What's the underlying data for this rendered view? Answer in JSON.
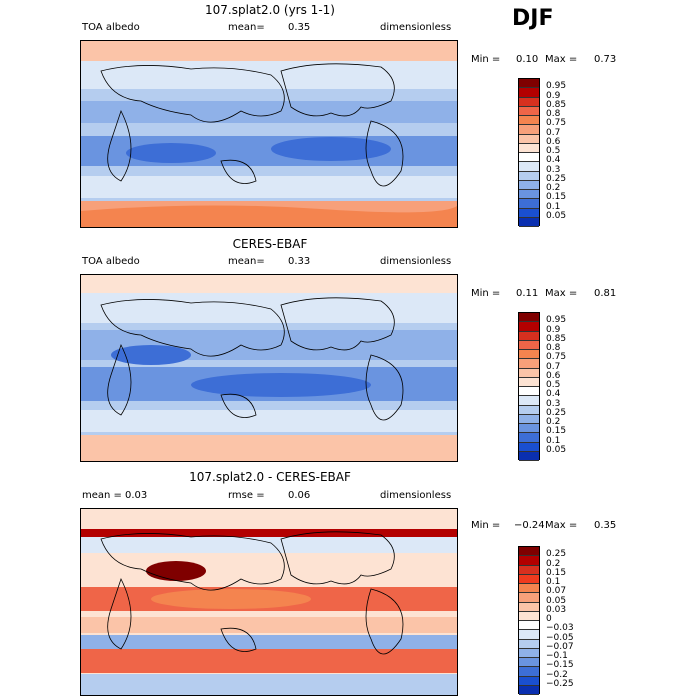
{
  "season": "DJF",
  "panels": [
    {
      "title": "107.splat2.0 (yrs 1-1)",
      "left_label": "TOA albedo",
      "mid_label": "mean=",
      "mid_value": "0.35",
      "right_label": "dimensionless",
      "min_label": "Min =",
      "min_value": "0.10",
      "max_label": "Max =",
      "max_value": "0.73"
    },
    {
      "title": "CERES-EBAF",
      "left_label": "TOA albedo",
      "mid_label": "mean=",
      "mid_value": "0.33",
      "right_label": "dimensionless",
      "min_label": "Min =",
      "min_value": "0.11",
      "max_label": "Max =",
      "max_value": "0.81"
    },
    {
      "title": "107.splat2.0 - CERES-EBAF",
      "left_label": "mean =",
      "left_value": "0.03",
      "mid_label": "rmse =",
      "mid_value": "0.06",
      "right_label": "dimensionless",
      "min_label": "Min =",
      "min_value": "−0.24",
      "max_label": "Max =",
      "max_value": "0.35"
    }
  ],
  "colorbar_abs": {
    "ticks": [
      "0.95",
      "0.9",
      "0.85",
      "0.8",
      "0.75",
      "0.7",
      "0.6",
      "0.5",
      "0.4",
      "0.3",
      "0.25",
      "0.2",
      "0.15",
      "0.1",
      "0.05"
    ],
    "colors": [
      "#7f0000",
      "#b30000",
      "#d7301f",
      "#ef6548",
      "#f4844f",
      "#f7a07a",
      "#fbc4a8",
      "#fde3d3",
      "#ffffff",
      "#dce8f7",
      "#b5cdef",
      "#8fb1e8",
      "#6a94e0",
      "#3d6ed6",
      "#1a4fd0",
      "#0a2fb0"
    ]
  },
  "colorbar_diff": {
    "ticks": [
      "0.25",
      "0.2",
      "0.15",
      "0.1",
      "0.07",
      "0.05",
      "0.03",
      "0",
      "−0.03",
      "−0.05",
      "−0.07",
      "−0.1",
      "−0.15",
      "−0.2",
      "−0.25"
    ],
    "colors": [
      "#7f0000",
      "#b30000",
      "#d7301f",
      "#ef3b1f",
      "#f4844f",
      "#f7a07a",
      "#fbc4a8",
      "#fde3d3",
      "#ffffff",
      "#dce8f7",
      "#b5cdef",
      "#8fb1e8",
      "#6a94e0",
      "#3d6ed6",
      "#1a4fd0",
      "#0a2fb0"
    ]
  }
}
